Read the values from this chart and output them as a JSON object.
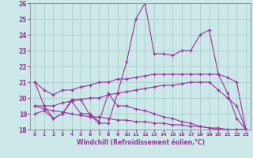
{
  "xlabel": "Windchill (Refroidissement éolien,°C)",
  "xlim": [
    -0.5,
    23.5
  ],
  "ylim": [
    18,
    26
  ],
  "yticks": [
    18,
    19,
    20,
    21,
    22,
    23,
    24,
    25,
    26
  ],
  "xticks": [
    0,
    1,
    2,
    3,
    4,
    5,
    6,
    7,
    8,
    9,
    10,
    11,
    12,
    13,
    14,
    15,
    16,
    17,
    18,
    19,
    20,
    21,
    22,
    23
  ],
  "bg_color": "#cce8e8",
  "grid_color": "#aacccc",
  "line_color": "#993399",
  "series": [
    {
      "x": [
        0,
        1,
        2,
        3,
        4,
        5,
        6,
        7,
        8,
        9,
        10,
        11,
        12,
        13,
        14,
        15,
        16,
        17,
        18,
        19,
        20,
        21,
        22,
        23
      ],
      "y": [
        21.0,
        19.5,
        18.7,
        19.0,
        19.9,
        19.9,
        18.9,
        18.4,
        18.4,
        20.3,
        22.3,
        25.0,
        26.0,
        22.8,
        22.8,
        22.7,
        23.0,
        23.0,
        24.0,
        24.3,
        21.5,
        20.3,
        18.7,
        18.0
      ]
    },
    {
      "x": [
        0,
        1,
        2,
        3,
        4,
        5,
        6,
        7,
        8,
        9,
        10,
        11,
        12,
        13,
        14,
        15,
        16,
        17,
        18,
        19,
        20,
        21,
        22,
        23
      ],
      "y": [
        21.0,
        20.5,
        20.2,
        20.5,
        20.5,
        20.7,
        20.8,
        21.0,
        21.0,
        21.2,
        21.2,
        21.3,
        21.4,
        21.5,
        21.5,
        21.5,
        21.5,
        21.5,
        21.5,
        21.5,
        21.5,
        21.3,
        21.0,
        18.0
      ]
    },
    {
      "x": [
        0,
        1,
        2,
        3,
        4,
        5,
        6,
        7,
        8,
        9,
        10,
        11,
        12,
        13,
        14,
        15,
        16,
        17,
        18,
        19,
        20,
        21,
        22,
        23
      ],
      "y": [
        19.5,
        19.5,
        19.5,
        19.7,
        19.8,
        19.9,
        20.0,
        20.0,
        20.2,
        20.3,
        20.4,
        20.5,
        20.6,
        20.7,
        20.8,
        20.8,
        20.9,
        21.0,
        21.0,
        21.0,
        20.5,
        20.0,
        19.5,
        18.0
      ]
    },
    {
      "x": [
        0,
        1,
        2,
        3,
        4,
        5,
        6,
        7,
        8,
        9,
        10,
        11,
        12,
        13,
        14,
        15,
        16,
        17,
        18,
        19,
        20,
        21,
        22,
        23
      ],
      "y": [
        19.5,
        19.3,
        19.2,
        19.1,
        19.0,
        18.9,
        18.8,
        18.8,
        18.7,
        18.6,
        18.6,
        18.5,
        18.5,
        18.4,
        18.4,
        18.3,
        18.3,
        18.2,
        18.2,
        18.1,
        18.1,
        18.0,
        18.0,
        18.0
      ]
    },
    {
      "x": [
        0,
        1,
        2,
        3,
        4,
        5,
        6,
        7,
        8,
        9,
        10,
        11,
        12,
        13,
        14,
        15,
        16,
        17,
        18,
        19,
        20,
        21,
        22,
        23
      ],
      "y": [
        19.0,
        19.2,
        18.7,
        19.0,
        19.8,
        19.0,
        19.0,
        18.5,
        20.3,
        19.5,
        19.5,
        19.3,
        19.2,
        19.0,
        18.8,
        18.7,
        18.5,
        18.4,
        18.2,
        18.1,
        18.0,
        18.0,
        18.0,
        18.0
      ]
    }
  ]
}
